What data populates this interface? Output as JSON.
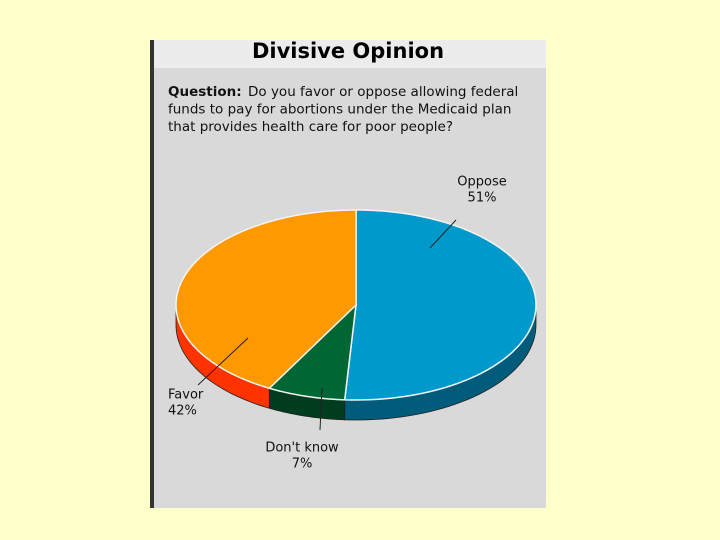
{
  "chart_data": {
    "type": "pie",
    "title": "Divisive Opinion",
    "question_label": "Question:",
    "question": "Do you favor or oppose allowing federal funds to pay for abortions under the Medicaid plan that provides health care for poor people?",
    "categories": [
      "Oppose",
      "Don't know",
      "Favor"
    ],
    "values": [
      51,
      7,
      42
    ],
    "value_labels": [
      "51%",
      "7%",
      "42%"
    ],
    "colors": [
      "#0099cc",
      "#006633",
      "#ff9900"
    ]
  }
}
